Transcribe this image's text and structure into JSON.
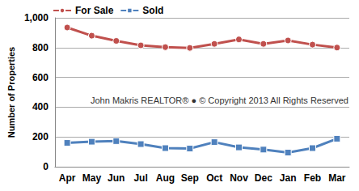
{
  "chart_data": {
    "type": "line",
    "ylabel": "Number of Properties",
    "annotation": "John Makris REALTOR® ● © Copyright 2013 All Rights Reserved",
    "categories": [
      "Apr",
      "May",
      "Jun",
      "Jul",
      "Aug",
      "Sep",
      "Oct",
      "Nov",
      "Dec",
      "Jan",
      "Feb",
      "Mar"
    ],
    "series": [
      {
        "name": "For Sale",
        "color": "#c0504d",
        "marker": "circle",
        "line_style": "solid",
        "values": [
          935,
          880,
          845,
          815,
          803,
          798,
          825,
          855,
          825,
          848,
          820,
          800
        ]
      },
      {
        "name": "Sold",
        "color": "#4f81bd",
        "marker": "square",
        "line_style": "solid",
        "values": [
          160,
          168,
          172,
          152,
          125,
          122,
          165,
          130,
          115,
          95,
          125,
          188
        ]
      }
    ],
    "ylim": [
      0,
      1000
    ],
    "yticks": [
      0,
      200,
      400,
      600,
      800,
      1000
    ],
    "grid": true,
    "legend": "top-left"
  }
}
